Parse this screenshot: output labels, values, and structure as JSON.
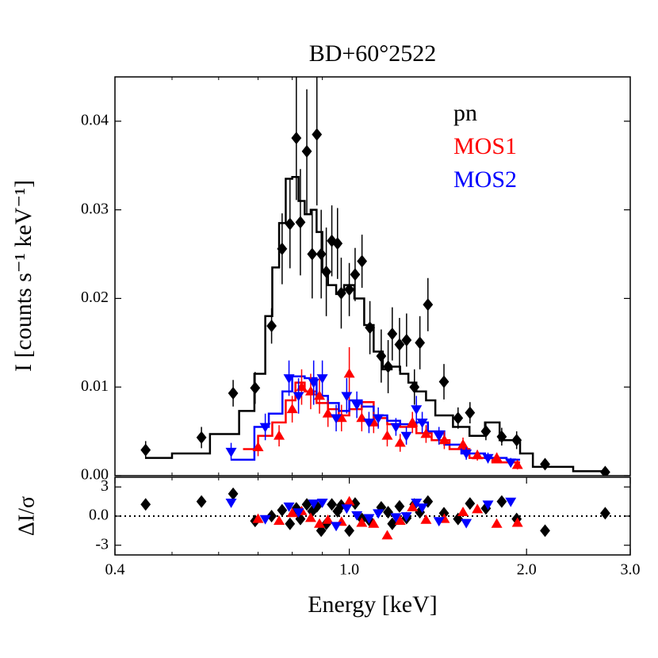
{
  "chart_data": [
    {
      "type": "scatter",
      "title": "BD+60°2522",
      "ylabel": "I [counts s⁻¹ keV⁻¹]",
      "xscale": "log",
      "xlim": [
        0.4,
        3.0
      ],
      "ylim": [
        0,
        0.045
      ],
      "yticks": [
        {
          "value": 0,
          "label": "0.00"
        },
        {
          "value": 0.01,
          "label": "0.01"
        },
        {
          "value": 0.02,
          "label": "0.02"
        },
        {
          "value": 0.03,
          "label": "0.03"
        },
        {
          "value": 0.04,
          "label": "0.04"
        }
      ],
      "xminorticks": [
        0.5,
        0.6,
        0.7,
        0.8,
        0.9
      ],
      "legend": "upper right",
      "series": [
        {
          "name": "pn",
          "color": "#000000",
          "marker": "diamond",
          "x": [
            0.451,
            0.561,
            0.635,
            0.692,
            0.738,
            0.769,
            0.793,
            0.813,
            0.826,
            0.847,
            0.865,
            0.881,
            0.896,
            0.914,
            0.934,
            0.955,
            0.969,
            1.0,
            1.023,
            1.051,
            1.084,
            1.133,
            1.164,
            1.183,
            1.217,
            1.251,
            1.29,
            1.318,
            1.36,
            1.448,
            1.53,
            1.603,
            1.706,
            1.815,
            1.924,
            2.15,
            2.72
          ],
          "values": [
            0.0029,
            0.0043,
            0.0093,
            0.0099,
            0.0169,
            0.0256,
            0.0284,
            0.0381,
            0.0286,
            0.0366,
            0.025,
            0.0385,
            0.025,
            0.023,
            0.0265,
            0.0262,
            0.0206,
            0.021,
            0.0227,
            0.0242,
            0.0167,
            0.0135,
            0.0123,
            0.016,
            0.0148,
            0.0153,
            0.01,
            0.015,
            0.0193,
            0.0106,
            0.0065,
            0.0071,
            0.005,
            0.0044,
            0.004,
            0.0013,
            0.0004
          ],
          "errors": [
            0.001,
            0.0012,
            0.0015,
            0.0018,
            0.002,
            0.004,
            0.005,
            0.007,
            0.006,
            0.007,
            0.005,
            0.008,
            0.005,
            0.005,
            0.004,
            0.004,
            0.004,
            0.003,
            0.003,
            0.003,
            0.003,
            0.003,
            0.003,
            0.003,
            0.003,
            0.003,
            0.002,
            0.003,
            0.003,
            0.002,
            0.0012,
            0.0012,
            0.001,
            0.001,
            0.001,
            0.0005,
            0.0003
          ],
          "model": {
            "x": [
              0.45,
              0.5,
              0.58,
              0.65,
              0.69,
              0.72,
              0.74,
              0.76,
              0.78,
              0.8,
              0.82,
              0.84,
              0.86,
              0.88,
              0.9,
              0.92,
              0.95,
              0.98,
              1.02,
              1.06,
              1.1,
              1.14,
              1.18,
              1.22,
              1.26,
              1.3,
              1.35,
              1.4,
              1.5,
              1.6,
              1.7,
              1.8,
              1.95,
              2.05,
              2.4,
              2.7
            ],
            "values": [
              0.002,
              0.0025,
              0.0047,
              0.0073,
              0.0115,
              0.018,
              0.0235,
              0.0285,
              0.0335,
              0.0337,
              0.031,
              0.0295,
              0.03,
              0.0275,
              0.023,
              0.0215,
              0.0205,
              0.0215,
              0.02,
              0.017,
              0.014,
              0.012,
              0.0123,
              0.0115,
              0.0105,
              0.0095,
              0.0085,
              0.0068,
              0.0055,
              0.0045,
              0.006,
              0.004,
              0.0025,
              0.001,
              0.0005,
              0.0005
            ]
          }
        },
        {
          "name": "MOS1",
          "color": "#ff0000",
          "marker": "triangle-up",
          "x": [
            0.7,
            0.76,
            0.8,
            0.83,
            0.86,
            0.89,
            0.92,
            0.97,
            1.0,
            1.05,
            1.1,
            1.16,
            1.22,
            1.28,
            1.35,
            1.45,
            1.56,
            1.65,
            1.78,
            1.93
          ],
          "values": [
            0.0032,
            0.0045,
            0.0075,
            0.01,
            0.0095,
            0.009,
            0.007,
            0.0065,
            0.0115,
            0.0065,
            0.006,
            0.0045,
            0.0037,
            0.006,
            0.0047,
            0.004,
            0.0035,
            0.0023,
            0.002,
            0.0012
          ],
          "errors": [
            0.001,
            0.0012,
            0.0015,
            0.002,
            0.002,
            0.002,
            0.0015,
            0.0015,
            0.003,
            0.0015,
            0.0012,
            0.0012,
            0.001,
            0.0012,
            0.001,
            0.001,
            0.0008,
            0.0006,
            0.0006,
            0.0005
          ],
          "model": {
            "x": [
              0.66,
              0.7,
              0.74,
              0.78,
              0.81,
              0.84,
              0.88,
              0.92,
              0.96,
              1.0,
              1.05,
              1.1,
              1.16,
              1.22,
              1.3,
              1.38,
              1.48,
              1.6,
              1.75,
              1.95
            ],
            "values": [
              0.003,
              0.0045,
              0.006,
              0.0085,
              0.0105,
              0.0095,
              0.0082,
              0.0075,
              0.0068,
              0.0075,
              0.0083,
              0.0065,
              0.0058,
              0.0055,
              0.0048,
              0.004,
              0.003,
              0.002,
              0.0015,
              0.0015
            ]
          }
        },
        {
          "name": "MOS2",
          "color": "#0000ff",
          "marker": "triangle-down",
          "x": [
            0.63,
            0.72,
            0.79,
            0.82,
            0.87,
            0.9,
            0.95,
            0.99,
            1.03,
            1.08,
            1.12,
            1.2,
            1.25,
            1.3,
            1.33,
            1.42,
            1.58,
            1.72,
            1.88
          ],
          "values": [
            0.0027,
            0.0055,
            0.011,
            0.009,
            0.0105,
            0.011,
            0.0065,
            0.009,
            0.008,
            0.006,
            0.0065,
            0.0055,
            0.0045,
            0.0075,
            0.006,
            0.0045,
            0.0025,
            0.002,
            0.0015
          ],
          "errors": [
            0.001,
            0.0015,
            0.002,
            0.002,
            0.0025,
            0.002,
            0.0015,
            0.002,
            0.0015,
            0.0012,
            0.0012,
            0.001,
            0.001,
            0.0015,
            0.0012,
            0.001,
            0.0007,
            0.0006,
            0.0005
          ],
          "model": {
            "x": [
              0.63,
              0.69,
              0.73,
              0.77,
              0.8,
              0.84,
              0.88,
              0.92,
              0.96,
              1.0,
              1.05,
              1.1,
              1.16,
              1.22,
              1.3,
              1.36,
              1.45,
              1.55,
              1.7,
              1.85,
              1.95
            ],
            "values": [
              0.0018,
              0.0055,
              0.007,
              0.0095,
              0.0112,
              0.011,
              0.009,
              0.0082,
              0.0073,
              0.0085,
              0.0078,
              0.0068,
              0.0062,
              0.0058,
              0.006,
              0.005,
              0.0035,
              0.0025,
              0.002,
              0.0018,
              0.0018
            ]
          }
        }
      ]
    },
    {
      "type": "scatter",
      "xlabel": "Energy [keV]",
      "ylabel": "ΔI/σ",
      "xscale": "log",
      "xlim": [
        0.4,
        3.0
      ],
      "xticks": [
        0.4,
        {
          "value": 1,
          "label": "1.0"
        },
        {
          "value": 2,
          "label": "2.0"
        },
        {
          "value": 3,
          "label": "3.0"
        }
      ],
      "xminorticks": [
        0.5,
        0.6,
        0.7,
        0.8,
        0.9
      ],
      "ylim": [
        -4,
        4
      ],
      "yticks": [
        -3,
        {
          "value": 0,
          "label": "0.0"
        },
        3
      ],
      "reference_line": 0,
      "series": [
        {
          "color": "#000000",
          "marker": "diamond",
          "x": [
            0.451,
            0.561,
            0.635,
            0.692,
            0.738,
            0.769,
            0.793,
            0.813,
            0.826,
            0.847,
            0.865,
            0.881,
            0.896,
            0.914,
            0.934,
            0.955,
            0.969,
            1.0,
            1.023,
            1.051,
            1.084,
            1.133,
            1.164,
            1.183,
            1.217,
            1.251,
            1.29,
            1.318,
            1.36,
            1.448,
            1.53,
            1.603,
            1.706,
            1.815,
            1.924,
            2.15,
            2.72
          ],
          "values": [
            1.2,
            1.5,
            2.3,
            -0.5,
            0,
            0.6,
            -0.8,
            0.8,
            -0.3,
            1.2,
            0.5,
            1.0,
            -1.5,
            -0.8,
            1.2,
            0.5,
            1.1,
            -1.5,
            1.3,
            -0.3,
            -0.5,
            0.9,
            0.4,
            -0.8,
            1.0,
            -0.2,
            1.2,
            0.4,
            1.5,
            0.3,
            -0.3,
            1.3,
            0.8,
            1.5,
            -0.3,
            -1.5,
            0.3
          ]
        },
        {
          "color": "#ff0000",
          "marker": "triangle-up",
          "x": [
            0.7,
            0.76,
            0.8,
            0.83,
            0.86,
            0.89,
            0.92,
            0.97,
            1.0,
            1.05,
            1.1,
            1.16,
            1.22,
            1.28,
            1.35,
            1.45,
            1.56,
            1.65,
            1.78,
            1.93
          ],
          "values": [
            -0.3,
            -0.5,
            0.3,
            0.5,
            -0.2,
            -0.8,
            -0.4,
            -0.6,
            1.5,
            -0.7,
            -0.8,
            -2.0,
            -0.5,
            0.9,
            -0.4,
            -0.3,
            0.4,
            0.7,
            -0.8,
            -0.7
          ]
        },
        {
          "color": "#0000ff",
          "marker": "triangle-down",
          "x": [
            0.63,
            0.72,
            0.79,
            0.82,
            0.87,
            0.9,
            0.95,
            0.99,
            1.03,
            1.08,
            1.12,
            1.2,
            1.25,
            1.3,
            1.33,
            1.42,
            1.58,
            1.72,
            1.88
          ],
          "values": [
            1.4,
            -0.3,
            1.0,
            0.4,
            1.3,
            1.4,
            -1.0,
            0.8,
            0.1,
            -0.2,
            0.3,
            -0.1,
            0.0,
            1.4,
            0.9,
            -0.5,
            -0.7,
            1.2,
            1.5
          ]
        }
      ]
    }
  ]
}
